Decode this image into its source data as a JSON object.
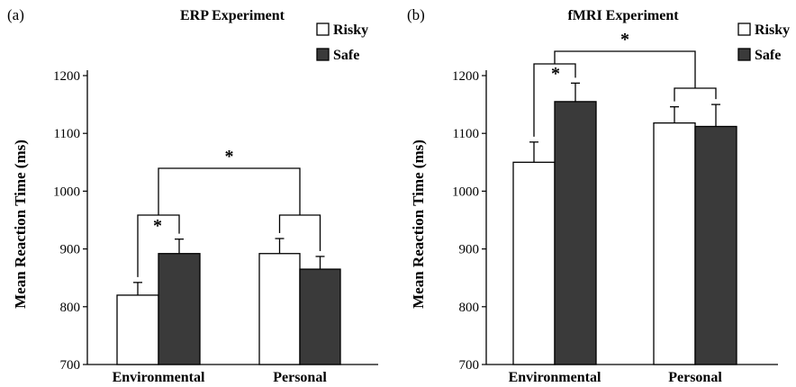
{
  "chart_data": [
    {
      "type": "bar",
      "panel_label": "(a)",
      "title": "ERP Experiment",
      "ylabel": "Mean Reaction Time (ms)",
      "xlabel": "",
      "ylim": [
        700,
        1200
      ],
      "yticks": [
        700,
        800,
        900,
        1000,
        1100,
        1200
      ],
      "categories": [
        "Environmental",
        "Personal"
      ],
      "series": [
        {
          "name": "Risky",
          "color": "#ffffff",
          "values": [
            820,
            892
          ],
          "errors": [
            22,
            26
          ]
        },
        {
          "name": "Safe",
          "color": "#3a3a3a",
          "values": [
            892,
            865
          ],
          "errors": [
            25,
            22
          ]
        }
      ],
      "legend_position": "top-right",
      "grid": false,
      "annotations": [
        {
          "type": "significance",
          "symbol": "*",
          "between": "Environmental Risky vs Safe"
        },
        {
          "type": "significance",
          "symbol": "*",
          "between": "Environmental vs Personal"
        }
      ]
    },
    {
      "type": "bar",
      "panel_label": "(b)",
      "title": "fMRI Experiment",
      "ylabel": "Mean Reaction Time (ms)",
      "xlabel": "",
      "ylim": [
        700,
        1200
      ],
      "yticks": [
        700,
        800,
        900,
        1000,
        1100,
        1200
      ],
      "categories": [
        "Environmental",
        "Personal"
      ],
      "series": [
        {
          "name": "Risky",
          "color": "#ffffff",
          "values": [
            1050,
            1118
          ],
          "errors": [
            35,
            28
          ]
        },
        {
          "name": "Safe",
          "color": "#3a3a3a",
          "values": [
            1155,
            1112
          ],
          "errors": [
            32,
            38
          ]
        }
      ],
      "legend_position": "top-right",
      "grid": false,
      "annotations": [
        {
          "type": "significance",
          "symbol": "*",
          "between": "Environmental Risky vs Safe"
        },
        {
          "type": "significance",
          "symbol": "*",
          "between": "Environmental vs Personal"
        }
      ]
    }
  ]
}
